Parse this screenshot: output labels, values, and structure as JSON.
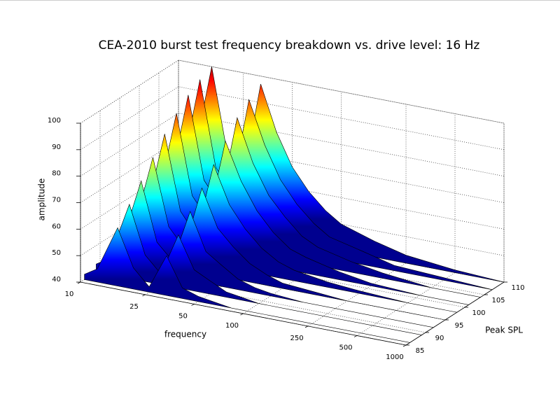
{
  "chart_data": {
    "type": "waterfall3d",
    "title": "CEA-2010 burst test frequency breakdown vs. drive level: 16 Hz",
    "x_label": "frequency",
    "y_label": "Peak SPL",
    "z_label": "amplitude",
    "x": [
      10,
      12,
      16,
      20,
      25,
      32,
      40,
      50,
      63,
      80,
      100,
      160,
      250,
      500,
      1000
    ],
    "xlim": [
      10,
      1000
    ],
    "xticks": [
      10,
      25,
      50,
      100,
      250,
      500,
      1000
    ],
    "xscale": "log",
    "ylim": [
      85,
      110
    ],
    "yticks": [
      85,
      90,
      95,
      100,
      105,
      110
    ],
    "zlim": [
      40,
      100
    ],
    "zticks": [
      40,
      50,
      60,
      70,
      80,
      90,
      100
    ],
    "colormap": "jet",
    "grid": true,
    "series": [
      {
        "name": "86",
        "y": 86,
        "values": [
          42,
          45,
          62,
          48,
          42,
          55,
          44,
          42,
          41,
          40,
          40,
          40,
          40,
          40,
          40
        ]
      },
      {
        "name": "89",
        "y": 89,
        "values": [
          43,
          46,
          68,
          50,
          44,
          60,
          48,
          45,
          42,
          41,
          40,
          40,
          40,
          40,
          40
        ]
      },
      {
        "name": "92",
        "y": 92,
        "values": [
          44,
          48,
          74,
          52,
          46,
          66,
          52,
          48,
          44,
          42,
          41,
          40,
          40,
          40,
          40
        ]
      },
      {
        "name": "95",
        "y": 95,
        "values": [
          45,
          50,
          80,
          55,
          48,
          72,
          58,
          52,
          47,
          44,
          42,
          41,
          40,
          40,
          40
        ]
      },
      {
        "name": "98",
        "y": 98,
        "values": [
          46,
          52,
          86,
          58,
          50,
          78,
          64,
          56,
          50,
          46,
          44,
          42,
          41,
          40,
          40
        ]
      },
      {
        "name": "101",
        "y": 101,
        "values": [
          47,
          54,
          91,
          61,
          53,
          84,
          70,
          60,
          53,
          48,
          46,
          43,
          41,
          40,
          40
        ]
      },
      {
        "name": "104",
        "y": 104,
        "values": [
          48,
          56,
          95,
          64,
          56,
          90,
          74,
          63,
          56,
          50,
          47,
          44,
          42,
          40,
          40
        ]
      },
      {
        "name": "107",
        "y": 107,
        "values": [
          48,
          58,
          98,
          66,
          58,
          94,
          78,
          66,
          58,
          52,
          48,
          45,
          42,
          41,
          40
        ]
      },
      {
        "name": "110",
        "y": 110,
        "values": [
          49,
          60,
          100,
          68,
          60,
          97,
          80,
          68,
          60,
          54,
          50,
          46,
          43,
          41,
          40
        ]
      }
    ]
  }
}
